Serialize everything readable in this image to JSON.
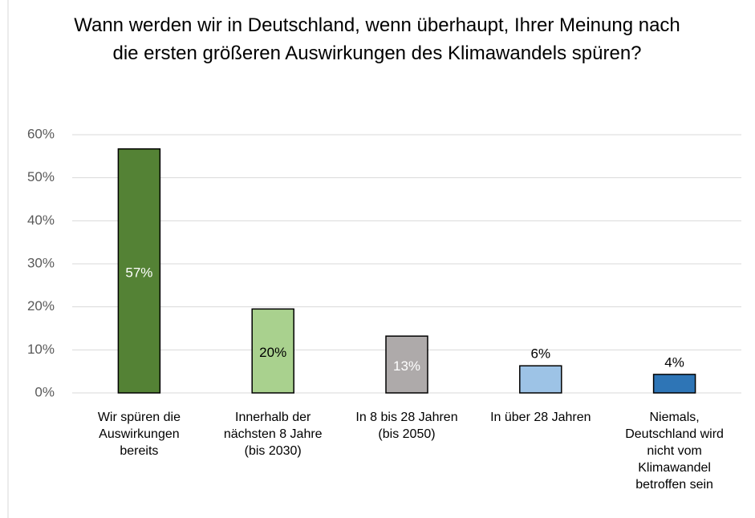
{
  "chart_data": {
    "type": "bar",
    "title": "Wann werden wir in Deutschland, wenn überhaupt, Ihrer Meinung nach die ersten größeren Auswirkungen des Klimawandels spüren?",
    "categories": [
      "Wir spüren die Auswirkungen bereits",
      "Innerhalb der nächsten 8 Jahre (bis 2030)",
      "In 8 bis 28 Jahren (bis 2050)",
      "In über 28 Jahren",
      "Niemals, Deutschland wird nicht vom Klimawandel betroffen sein"
    ],
    "values": [
      56.7,
      19.5,
      13.2,
      6.3,
      4.3
    ],
    "value_labels": [
      "57%",
      "20%",
      "13%",
      "6%",
      "4%"
    ],
    "colors": [
      "#548235",
      "#a9d18e",
      "#aeaaaa",
      "#9dc3e6",
      "#2e75b6"
    ],
    "label_colors": [
      "#ffffff",
      "#000000",
      "#ffffff",
      "#000000",
      "#000000"
    ],
    "ylim": [
      0,
      60
    ],
    "yticks": [
      {
        "value": 0,
        "label": "0%"
      },
      {
        "value": 10,
        "label": "10%"
      },
      {
        "value": 20,
        "label": "20%"
      },
      {
        "value": 30,
        "label": "30%"
      },
      {
        "value": 40,
        "label": "40%"
      },
      {
        "value": 50,
        "label": "50%"
      },
      {
        "value": 60,
        "label": "60%"
      }
    ],
    "grid": true
  }
}
